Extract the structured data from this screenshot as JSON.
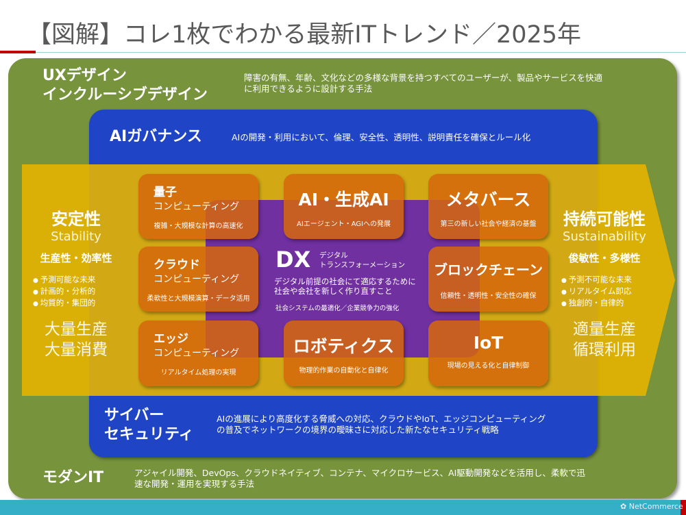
{
  "title": "【図解】コレ1枚でわかる最新ITトレンド／2025年",
  "colors": {
    "green": "#77933c",
    "blue": "#1f45c6",
    "yellow": "#e6b400",
    "purple": "#7030a0",
    "orange": "#d6670c",
    "footer": "#35aec8",
    "accent_red": "#c00000"
  },
  "ux": {
    "title1": "UXデザイン",
    "title2": "インクルーシブデザイン",
    "desc1": "障害の有無、年齢、文化などの多様な背景を持つすべてのユーザーが、製品やサービスを快適",
    "desc2": "に利用できるように設計する手法"
  },
  "governance": {
    "title": "AIガバナンス",
    "desc": "AIの開発・利用において、倫理、安全性、透明性、説明責任を確保とルール化"
  },
  "left": {
    "title": "安定性",
    "en": "Stability",
    "sub": "生産性・効率性",
    "bullets": [
      "予測可能な未来",
      "計画的・分析的",
      "均質的・集団的"
    ],
    "mass1": "大量生産",
    "mass2": "大量消費"
  },
  "right": {
    "title": "持続可能性",
    "en": "Sustainability",
    "sub": "俊敏性・多様性",
    "bullets": [
      "予測不可能な未来",
      "リアルタイム即応",
      "独創的・自律的"
    ],
    "mass1": "適量生産",
    "mass2": "循環利用"
  },
  "dx": {
    "title": "DX",
    "sub1": "デジタル",
    "sub2": "トランスフォーメーション",
    "desc1": "デジタル前提の社会にて適応するために",
    "desc2": "社会や会社を新しく作り直すこと",
    "desc3": "社会システムの最適化／企業競争力の強化"
  },
  "tiles": [
    {
      "t1": "量子",
      "t2": "コンピューティング",
      "d": "複雑・大規模な計算の高速化"
    },
    {
      "t1": "AI・生成AI",
      "d": "AIエージェント・AGIへの発展"
    },
    {
      "t1": "メタバース",
      "d": "第三の新しい社会や経済の基盤"
    },
    {
      "t1": "クラウド",
      "t2": "コンピューティング",
      "d": "柔軟性と大規模演算・データ活用"
    },
    {
      "t1": "ブロックチェーン",
      "d": "信頼性・透明性・安全性の確保"
    },
    {
      "t1": "エッジ",
      "t2": "コンピューティング",
      "d": "リアルタイム処理の実現"
    },
    {
      "t1": "ロボティクス",
      "d": "物理的作業の自動化と自律化"
    },
    {
      "t1": "IoT",
      "d": "現場の見える化と自律制御"
    }
  ],
  "security": {
    "title1": "サイバー",
    "title2": "セキュリティ",
    "desc1": "AIの進展により高度化する脅威への対応、クラウドやIoT、エッジコンピューティング",
    "desc2": "の普及でネットワークの境界の曖昧さに対応した新たなセキュリティ戦略"
  },
  "modern": {
    "title": "モダンIT",
    "desc1": "アジャイル開発、DevOps、クラウドネイティブ、コンテナ、マイクロサービス、AI駆動開発などを活用し、柔軟で迅",
    "desc2": "速な開発・運用を実現する手法"
  },
  "footer": {
    "logo": "NetCommerce"
  }
}
